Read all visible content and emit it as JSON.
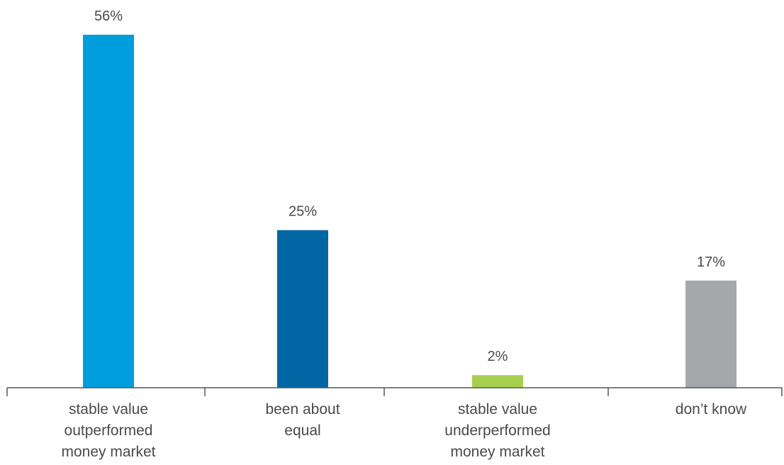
{
  "chart_data": {
    "type": "bar",
    "categories": [
      "stable value outperformed money market",
      "been about equal",
      "stable value underperformed money market",
      "don’t know"
    ],
    "category_lines": [
      [
        "stable value",
        "outperformed",
        "money market"
      ],
      [
        "been about",
        "equal"
      ],
      [
        "stable value",
        "underperformed",
        "money market"
      ],
      [
        "don’t know"
      ]
    ],
    "values": [
      56,
      25,
      2,
      17
    ],
    "value_labels": [
      "56%",
      "25%",
      "2%",
      "17%"
    ],
    "colors": [
      "#009ddc",
      "#0066a4",
      "#a6cf4f",
      "#a5a8ab"
    ],
    "title": "",
    "xlabel": "",
    "ylabel": "",
    "ylim": [
      0,
      56
    ],
    "grid": false,
    "legend": "none"
  }
}
